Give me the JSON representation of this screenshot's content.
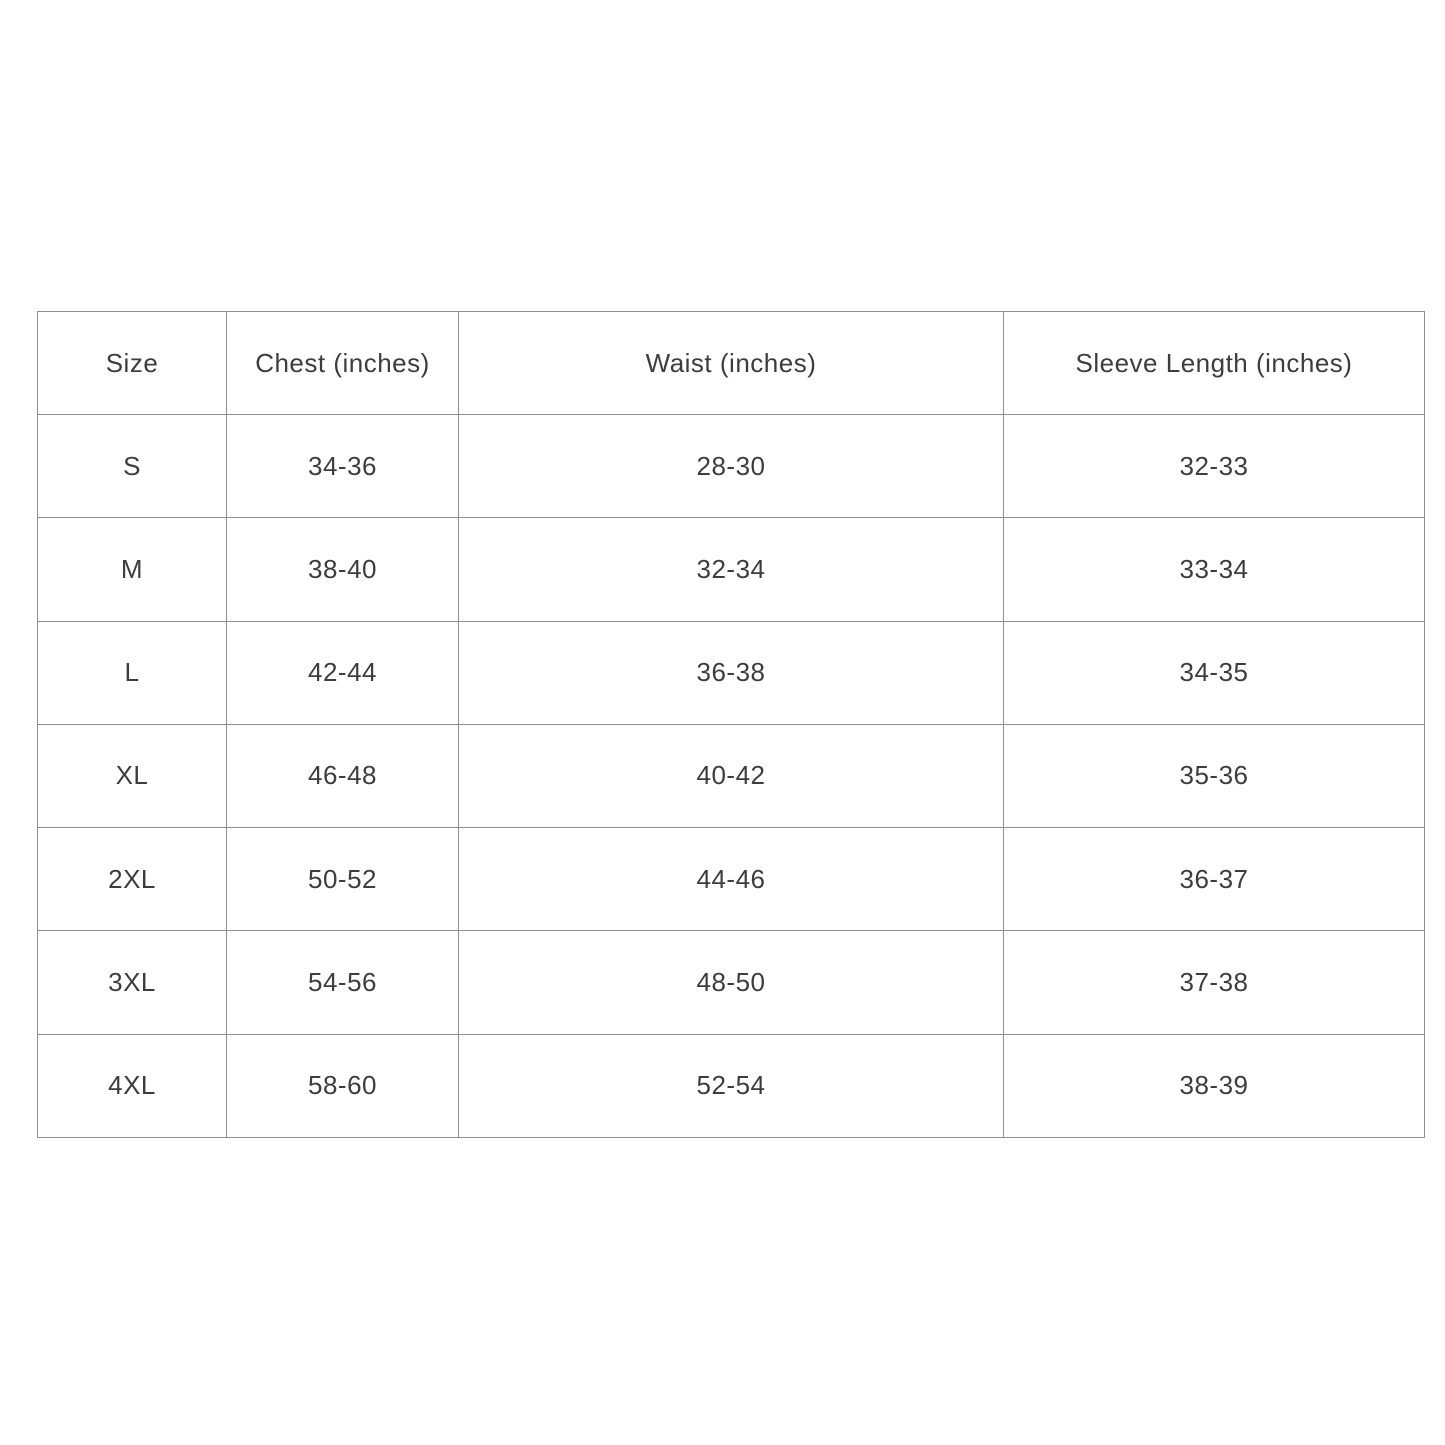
{
  "page": {
    "background_color": "#ffffff",
    "text_color": "#3d3d3d",
    "border_color": "#8f8f8f"
  },
  "size_chart": {
    "columns": [
      "Size",
      "Chest (inches)",
      "Waist (inches)",
      "Sleeve Length (inches)"
    ],
    "rows": [
      [
        "S",
        "34-36",
        "28-30",
        "32-33"
      ],
      [
        "M",
        "38-40",
        "32-34",
        "33-34"
      ],
      [
        "L",
        "42-44",
        "36-38",
        "34-35"
      ],
      [
        "XL",
        "46-48",
        "40-42",
        "35-36"
      ],
      [
        "2XL",
        "50-52",
        "44-46",
        "36-37"
      ],
      [
        "3XL",
        "54-56",
        "48-50",
        "37-38"
      ],
      [
        "4XL",
        "58-60",
        "52-54",
        "38-39"
      ]
    ]
  }
}
